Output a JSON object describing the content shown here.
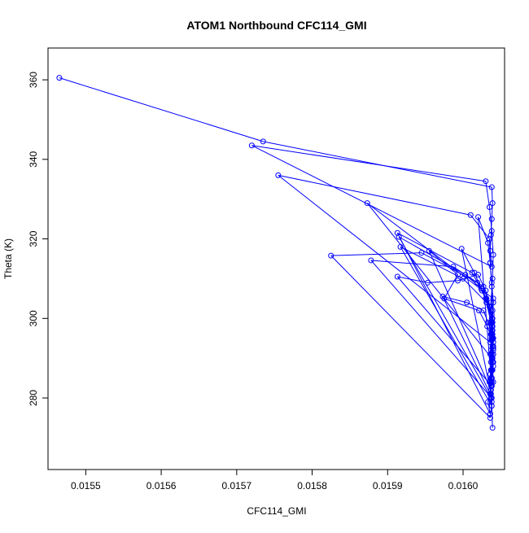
{
  "chart_data": {
    "type": "line",
    "title": "ATOM1 Northbound CFC114_GMI",
    "xlabel": "CFC114_GMI",
    "ylabel": "Theta (K)",
    "xlim": [
      0.01545,
      0.016055
    ],
    "ylim": [
      262,
      368
    ],
    "x_ticks": [
      0.0155,
      0.0156,
      0.0157,
      0.0158,
      0.0159,
      0.016
    ],
    "x_tick_labels": [
      "0.0155",
      "0.0156",
      "0.0157",
      "0.0158",
      "0.0159",
      "0.0160"
    ],
    "y_ticks": [
      280,
      300,
      320,
      340,
      360
    ],
    "y_tick_labels": [
      "280",
      "300",
      "320",
      "340",
      "360"
    ],
    "grid": false,
    "series_color": "#0000ff",
    "marker": "open-circle",
    "series": [
      {
        "x": [
          0.015465,
          0.015735,
          0.016038,
          0.016039,
          0.016038,
          0.016037,
          0.016036,
          0.016038,
          0.01572,
          0.01603,
          0.016035,
          0.016038,
          0.01604,
          0.016039,
          0.016037,
          0.016038,
          0.016036,
          0.015755,
          0.01601,
          0.016035,
          0.016036,
          0.016038,
          0.016039,
          0.016037,
          0.016038,
          0.015873,
          0.01604,
          0.016039,
          0.016037,
          0.016036,
          0.016038,
          0.016035,
          0.016037,
          0.015915,
          0.016003,
          0.016024,
          0.016038,
          0.016039,
          0.01604,
          0.016037,
          0.016038,
          0.016033,
          0.016036,
          0.015913,
          0.016012,
          0.016031,
          0.016037,
          0.016038,
          0.016039,
          0.016036,
          0.016037,
          0.015955,
          0.015993,
          0.015975,
          0.016021,
          0.016032,
          0.016038,
          0.01604,
          0.016039,
          0.016037,
          0.016036,
          0.016038,
          0.015917,
          0.016,
          0.016031,
          0.016037,
          0.016038,
          0.01604,
          0.016039,
          0.016037,
          0.016038,
          0.016036,
          0.015825,
          0.015945,
          0.016019,
          0.01603,
          0.016038,
          0.016039,
          0.016037,
          0.01604,
          0.016036,
          0.016038,
          0.015878,
          0.015987,
          0.016027,
          0.016035,
          0.016038,
          0.016039,
          0.01604,
          0.016037,
          0.016038,
          0.015913,
          0.015953,
          0.015993,
          0.01602,
          0.01603,
          0.016037,
          0.016038,
          0.016039,
          0.01604,
          0.016038,
          0.016036,
          0.015973,
          0.016005,
          0.016027,
          0.016033,
          0.016038,
          0.01604,
          0.016039,
          0.016038,
          0.016037,
          0.015998,
          0.016015,
          0.016025,
          0.016035,
          0.016039,
          0.01604,
          0.016038,
          0.016037,
          0.016038,
          0.01602,
          0.016033,
          0.016036,
          0.016038,
          0.01604,
          0.016039,
          0.01604,
          0.016039,
          0.01604,
          0.016038,
          0.016039
        ],
        "y": [
          360.5,
          344.5,
          333.0,
          329.0,
          325.0,
          321.0,
          317.0,
          313.0,
          343.5,
          334.5,
          328.0,
          322.0,
          316.0,
          310.0,
          304.0,
          298.0,
          294.0,
          336.0,
          326.0,
          320.0,
          314.0,
          308.0,
          302.0,
          296.0,
          290.0,
          329.0,
          305.0,
          300.0,
          296.0,
          291.0,
          287.0,
          284.0,
          280.0,
          320.5,
          311.0,
          307.5,
          301.0,
          297.0,
          293.0,
          289.0,
          284.0,
          279.0,
          276.0,
          321.5,
          311.5,
          305.0,
          299.0,
          294.5,
          290.0,
          286.0,
          282.0,
          317.0,
          311.0,
          305.0,
          302.0,
          298.0,
          295.0,
          292.0,
          289.0,
          285.0,
          281.0,
          278.0,
          318.0,
          310.0,
          304.0,
          299.0,
          295.0,
          291.0,
          287.0,
          283.0,
          279.0,
          275.0,
          315.8,
          316.5,
          309.0,
          305.0,
          300.0,
          296.0,
          292.0,
          288.0,
          284.0,
          280.0,
          314.6,
          313.0,
          308.0,
          303.0,
          299.0,
          295.0,
          291.0,
          287.0,
          283.0,
          310.5,
          309.0,
          309.5,
          311.0,
          307.0,
          302.0,
          297.0,
          293.0,
          289.0,
          285.0,
          281.0,
          305.5,
          304.0,
          302.0,
          299.0,
          296.0,
          292.5,
          289.0,
          285.0,
          281.0,
          317.5,
          311.5,
          307.0,
          303.0,
          299.0,
          295.0,
          291.0,
          287.0,
          283.0,
          325.5,
          319.0,
          314.0,
          309.0,
          304.0,
          298.0,
          294.0,
          290.0,
          284.0,
          278.0,
          272.5
        ]
      }
    ]
  }
}
